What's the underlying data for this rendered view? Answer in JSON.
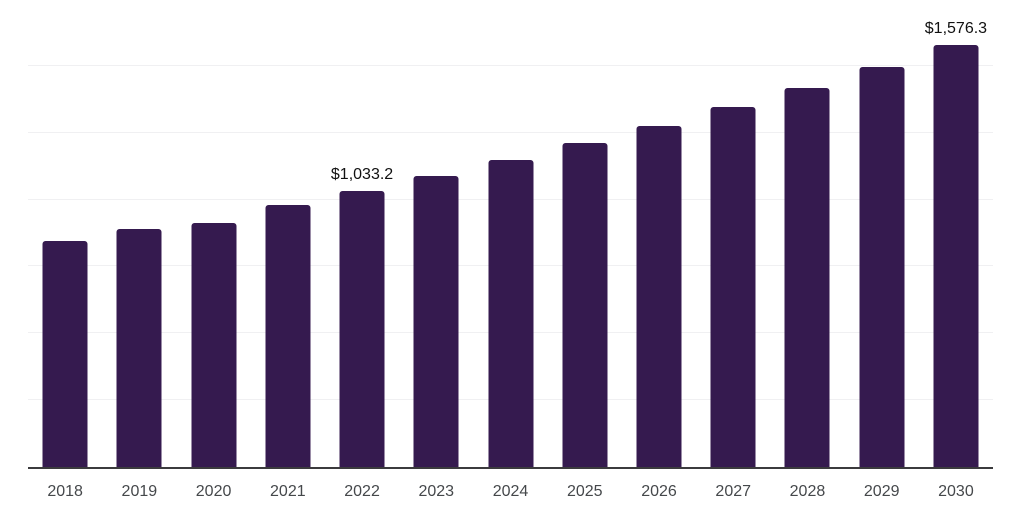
{
  "chart_data": {
    "type": "bar",
    "title": "",
    "xlabel": "",
    "ylabel": "",
    "categories": [
      "2018",
      "2019",
      "2020",
      "2021",
      "2022",
      "2023",
      "2024",
      "2025",
      "2026",
      "2027",
      "2028",
      "2029",
      "2030"
    ],
    "values": [
      846.0,
      890.0,
      912.0,
      978.0,
      1033.2,
      1089.2,
      1148.3,
      1210.6,
      1276.2,
      1345.5,
      1418.4,
      1495.3,
      1576.3
    ],
    "data_labels": {
      "2022": "$1,033.2",
      "2030": "$1,576.3"
    },
    "ylim": [
      0,
      1750
    ],
    "gridline_step": 250,
    "grid": true,
    "legend": false,
    "y_tick_labels_shown": false
  },
  "colors": {
    "background": "#ffffff",
    "bar": "#351a4f",
    "gridline": "#f0f0f2",
    "axis_line": "#3b3b3d",
    "tick_label": "#45484b",
    "data_label": "#111111"
  }
}
